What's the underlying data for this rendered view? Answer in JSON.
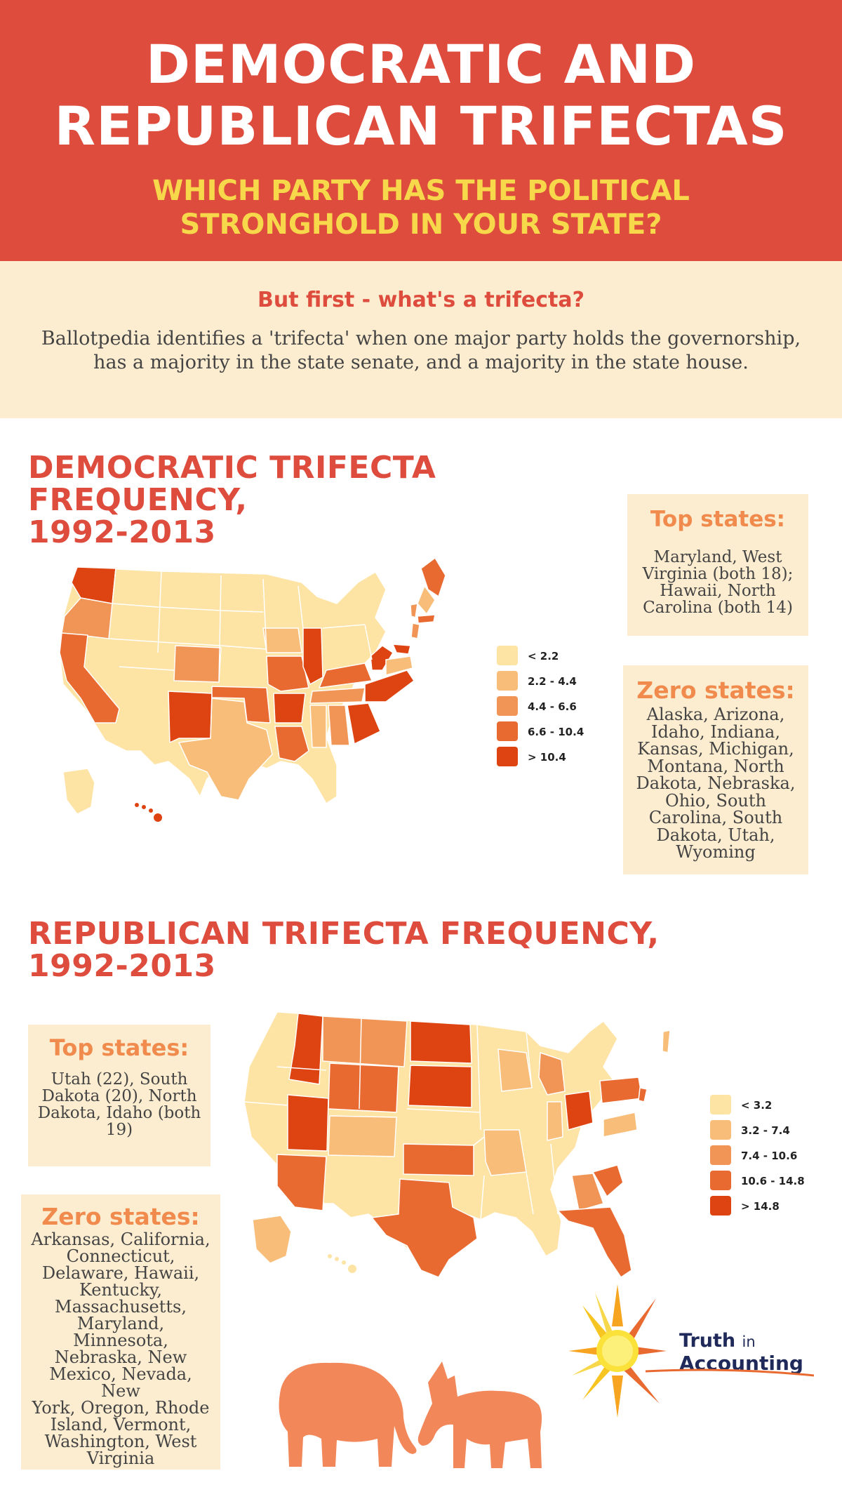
{
  "header": {
    "title_line1": "DEMOCRATIC AND",
    "title_line2": "REPUBLICAN TRIFECTAS",
    "subtitle_line1": "WHICH PARTY HAS THE POLITICAL",
    "subtitle_line2": "STRONGHOLD IN YOUR STATE?"
  },
  "intro": {
    "question": "But first - what's a trifecta?",
    "line1": "Ballotpedia identifies a 'trifecta' when one major party holds the governorship,",
    "line2": "has a majority in the state senate, and a majority in the state house."
  },
  "democratic": {
    "title_line1": "DEMOCRATIC TRIFECTA FREQUENCY,",
    "title_line2": "1992-2013",
    "top_heading": "Top states:",
    "top_lines": [
      "Maryland, West",
      "Virginia (both 18);",
      "Hawaii, North",
      "Carolina (both 14)"
    ],
    "zero_heading": "Zero states:",
    "zero_lines": [
      "Alaska, Arizona,",
      "Idaho, Indiana,",
      "Kansas, Michigan,",
      "Montana, North",
      "Dakota, Nebraska,",
      "Ohio, South",
      "Carolina, South",
      "Dakota, Utah,",
      "Wyoming"
    ],
    "legend": [
      {
        "label": "< 2.2",
        "color": "#fde3a4"
      },
      {
        "label": "2.2 - 4.4",
        "color": "#f8bd79"
      },
      {
        "label": "4.4 - 6.6",
        "color": "#f19556"
      },
      {
        "label": "6.6 - 10.4",
        "color": "#e86a31"
      },
      {
        "label": "> 10.4",
        "color": "#de4411"
      }
    ]
  },
  "republican": {
    "title_line1": "REPUBLICAN TRIFECTA FREQUENCY,",
    "title_line2": "1992-2013",
    "top_heading": "Top states:",
    "top_lines": [
      "Utah (22), South",
      "Dakota (20), North",
      "Dakota, Idaho (both",
      "19)"
    ],
    "zero_heading": "Zero states:",
    "zero_lines": [
      "Arkansas, California,",
      "Connecticut,",
      "Delaware, Hawaii,",
      "Kentucky,",
      "Massachusetts,",
      "Maryland,",
      "Minnesota,",
      "Nebraska, New",
      "Mexico, Nevada, New",
      "York, Oregon, Rhode",
      "Island, Vermont,",
      "Washington, West",
      "Virginia"
    ],
    "legend": [
      {
        "label": "< 3.2",
        "color": "#fde3a4"
      },
      {
        "label": "3.2 - 7.4",
        "color": "#f8bd79"
      },
      {
        "label": "7.4 - 10.6",
        "color": "#f19556"
      },
      {
        "label": "10.6 - 14.8",
        "color": "#e86a31"
      },
      {
        "label": "> 14.8",
        "color": "#de4411"
      }
    ]
  },
  "logo": {
    "line1a": "Truth",
    "line1b": "in",
    "line2": "Accounting"
  },
  "colors": {
    "header_bg": "#de4c3d",
    "subtitle": "#f7d84a",
    "panel_bg": "#fdedd0",
    "box_heading": "#f08b4d",
    "animal": "#f2875a",
    "logo_text": "#1f2a5a"
  },
  "icons": [
    "us-map-democratic",
    "us-map-republican",
    "sun-logo-icon",
    "elephant-icon",
    "donkey-icon"
  ]
}
